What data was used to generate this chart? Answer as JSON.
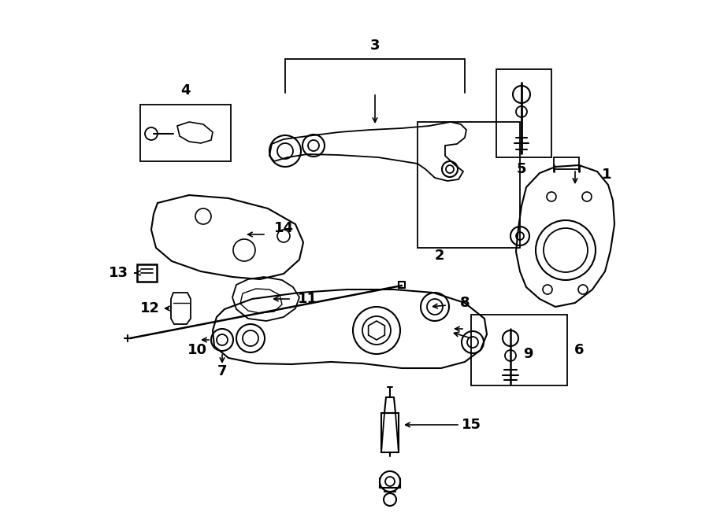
{
  "bg_color": "#ffffff",
  "line_color": "#000000",
  "fig_width": 9.0,
  "fig_height": 6.61,
  "dpi": 100,
  "title_fontsize": 13
}
